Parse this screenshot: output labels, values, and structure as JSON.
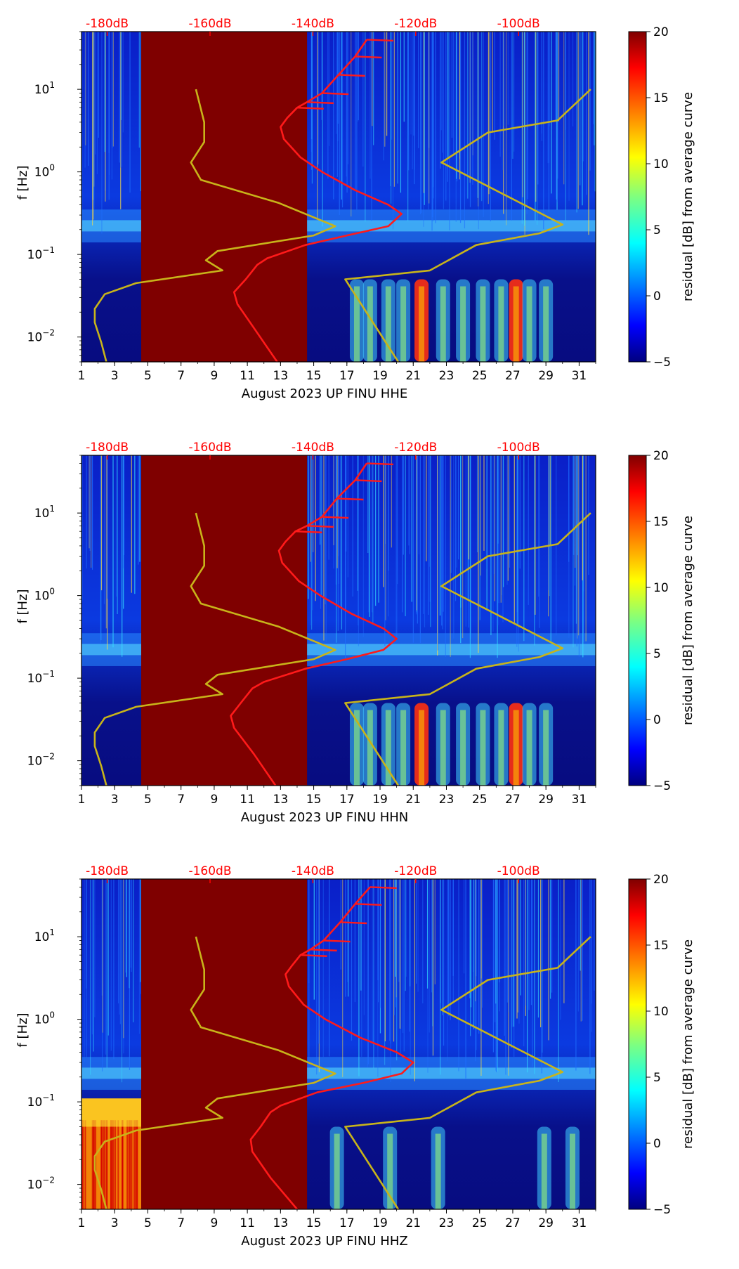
{
  "colors": {
    "power_curve": "#ff1a1a",
    "reference_curve": "#c8b41a",
    "db_label": "#ff0000",
    "axis": "#000000",
    "colormap": [
      "#00007f",
      "#0000ff",
      "#007fff",
      "#00ffff",
      "#7fff7f",
      "#ffff00",
      "#ff7f00",
      "#ff0000",
      "#7f0000"
    ]
  },
  "chart_data": [
    {
      "type": "heatmap",
      "channel": "HHE",
      "xlabel": "August 2023 UP FINU  HHE",
      "ylabel": "f [Hz]",
      "xlim": [
        1,
        32
      ],
      "xticks": [
        "1",
        "3",
        "5",
        "7",
        "9",
        "11",
        "13",
        "15",
        "17",
        "19",
        "21",
        "23",
        "25",
        "27",
        "29",
        "31"
      ],
      "ylim": [
        0.005,
        50
      ],
      "yscale": "log",
      "yticks": [
        {
          "value": 0.01,
          "base": "10",
          "exp": "−2"
        },
        {
          "value": 0.1,
          "base": "10",
          "exp": "−1"
        },
        {
          "value": 1,
          "base": "10",
          "exp": "0"
        },
        {
          "value": 10,
          "base": "10",
          "exp": "1"
        }
      ],
      "top_axis_labels": [
        "-180dB",
        "-160dB",
        "-140dB",
        "-120dB",
        "-100dB"
      ],
      "top_axis_range_dB": [
        -185,
        -85
      ],
      "saturated_days": [
        4.6,
        14.6
      ],
      "colorbar": {
        "label": "residual [dB] from average curve",
        "range": [
          -5,
          20
        ],
        "ticks": [
          "−5",
          "0",
          "5",
          "10",
          "15",
          "20"
        ]
      },
      "series": [
        {
          "name": "power curve",
          "points": [
            [
              12.8,
              0.005
            ],
            [
              11.5,
              0.012
            ],
            [
              10.4,
              0.025
            ],
            [
              10.2,
              0.035
            ],
            [
              10.9,
              0.05
            ],
            [
              11.6,
              0.075
            ],
            [
              12.2,
              0.09
            ],
            [
              14.5,
              0.13
            ],
            [
              17,
              0.17
            ],
            [
              19.5,
              0.22
            ],
            [
              20.3,
              0.31
            ],
            [
              19.5,
              0.4
            ],
            [
              17.5,
              0.6
            ],
            [
              15.5,
              1.0
            ],
            [
              14.2,
              1.5
            ],
            [
              13.2,
              2.5
            ],
            [
              13.0,
              3.5
            ],
            [
              13.4,
              4.5
            ],
            [
              14.0,
              6.0
            ],
            [
              14.6,
              7.0
            ],
            [
              15.5,
              9.0
            ],
            [
              16.5,
              15.0
            ],
            [
              17.5,
              25.0
            ],
            [
              18.2,
              40.0
            ]
          ]
        },
        {
          "name": "reference curve",
          "points": [
            [
              2.5,
              0.005
            ],
            [
              2.2,
              0.0085
            ],
            [
              1.8,
              0.015
            ],
            [
              1.8,
              0.022
            ],
            [
              2.4,
              0.033
            ],
            [
              4.3,
              0.045
            ],
            [
              9.5,
              0.064
            ],
            [
              8.5,
              0.085
            ],
            [
              9.2,
              0.11
            ],
            [
              15,
              0.17
            ],
            [
              16.3,
              0.22
            ],
            [
              12.9,
              0.42
            ],
            [
              8.2,
              0.8
            ],
            [
              7.6,
              1.3
            ],
            [
              8.4,
              2.3
            ],
            [
              8.4,
              4.0
            ],
            [
              7.9,
              10.0
            ]
          ]
        },
        {
          "name": "reference curve (high)",
          "points": [
            [
              20.1,
              0.005
            ],
            [
              16.9,
              0.05
            ],
            [
              22.0,
              0.064
            ],
            [
              24.8,
              0.13
            ],
            [
              28.6,
              0.18
            ],
            [
              30.0,
              0.23
            ],
            [
              22.7,
              1.3
            ],
            [
              25.5,
              3.0
            ],
            [
              29.7,
              4.2
            ],
            [
              31.7,
              10.0
            ]
          ]
        }
      ]
    },
    {
      "type": "heatmap",
      "channel": "HHN",
      "xlabel": "August 2023 UP FINU  HHN",
      "ylabel": "f [Hz]",
      "xlim": [
        1,
        32
      ],
      "xticks": [
        "1",
        "3",
        "5",
        "7",
        "9",
        "11",
        "13",
        "15",
        "17",
        "19",
        "21",
        "23",
        "25",
        "27",
        "29",
        "31"
      ],
      "ylim": [
        0.005,
        50
      ],
      "yscale": "log",
      "yticks": [
        {
          "value": 0.01,
          "base": "10",
          "exp": "−2"
        },
        {
          "value": 0.1,
          "base": "10",
          "exp": "−1"
        },
        {
          "value": 1,
          "base": "10",
          "exp": "0"
        },
        {
          "value": 10,
          "base": "10",
          "exp": "1"
        }
      ],
      "top_axis_labels": [
        "-180dB",
        "-160dB",
        "-140dB",
        "-120dB",
        "-100dB"
      ],
      "top_axis_range_dB": [
        -185,
        -85
      ],
      "saturated_days": [
        4.6,
        14.6
      ],
      "colorbar": {
        "label": "residual [dB] from average curve",
        "range": [
          -5,
          20
        ],
        "ticks": [
          "−5",
          "0",
          "5",
          "10",
          "15",
          "20"
        ]
      },
      "series": [
        {
          "name": "power curve",
          "points": [
            [
              12.7,
              0.005
            ],
            [
              11.4,
              0.012
            ],
            [
              10.2,
              0.025
            ],
            [
              10.0,
              0.035
            ],
            [
              10.6,
              0.05
            ],
            [
              11.3,
              0.075
            ],
            [
              12.0,
              0.09
            ],
            [
              14.5,
              0.13
            ],
            [
              17,
              0.17
            ],
            [
              19.2,
              0.22
            ],
            [
              20.0,
              0.3
            ],
            [
              19.2,
              0.4
            ],
            [
              17.3,
              0.6
            ],
            [
              15.4,
              1.0
            ],
            [
              14.1,
              1.5
            ],
            [
              13.1,
              2.5
            ],
            [
              12.9,
              3.5
            ],
            [
              13.3,
              4.5
            ],
            [
              13.9,
              6.0
            ],
            [
              14.6,
              7.0
            ],
            [
              15.5,
              9.0
            ],
            [
              16.4,
              15.0
            ],
            [
              17.5,
              25.0
            ],
            [
              18.2,
              40.0
            ]
          ]
        },
        {
          "name": "reference curve",
          "points": [
            [
              2.5,
              0.005
            ],
            [
              2.2,
              0.0085
            ],
            [
              1.8,
              0.015
            ],
            [
              1.8,
              0.022
            ],
            [
              2.4,
              0.033
            ],
            [
              4.3,
              0.045
            ],
            [
              9.5,
              0.064
            ],
            [
              8.5,
              0.085
            ],
            [
              9.2,
              0.11
            ],
            [
              15,
              0.17
            ],
            [
              16.3,
              0.22
            ],
            [
              12.9,
              0.42
            ],
            [
              8.2,
              0.8
            ],
            [
              7.6,
              1.3
            ],
            [
              8.4,
              2.3
            ],
            [
              8.4,
              4.0
            ],
            [
              7.9,
              10.0
            ]
          ]
        },
        {
          "name": "reference curve (high)",
          "points": [
            [
              20.1,
              0.005
            ],
            [
              16.9,
              0.05
            ],
            [
              22.0,
              0.064
            ],
            [
              24.8,
              0.13
            ],
            [
              28.6,
              0.18
            ],
            [
              30.0,
              0.23
            ],
            [
              22.7,
              1.3
            ],
            [
              25.5,
              3.0
            ],
            [
              29.7,
              4.2
            ],
            [
              31.7,
              10.0
            ]
          ]
        }
      ]
    },
    {
      "type": "heatmap",
      "channel": "HHZ",
      "xlabel": "August 2023 UP FINU  HHZ",
      "ylabel": "f [Hz]",
      "xlim": [
        1,
        32
      ],
      "xticks": [
        "1",
        "3",
        "5",
        "7",
        "9",
        "11",
        "13",
        "15",
        "17",
        "19",
        "21",
        "23",
        "25",
        "27",
        "29",
        "31"
      ],
      "ylim": [
        0.005,
        50
      ],
      "yscale": "log",
      "yticks": [
        {
          "value": 0.01,
          "base": "10",
          "exp": "−2"
        },
        {
          "value": 0.1,
          "base": "10",
          "exp": "−1"
        },
        {
          "value": 1,
          "base": "10",
          "exp": "0"
        },
        {
          "value": 10,
          "base": "10",
          "exp": "1"
        }
      ],
      "top_axis_labels": [
        "-180dB",
        "-160dB",
        "-140dB",
        "-120dB",
        "-100dB"
      ],
      "top_axis_range_dB": [
        -185,
        -85
      ],
      "saturated_days": [
        4.6,
        14.6
      ],
      "colorbar": {
        "label": "residual [dB] from average curve",
        "range": [
          -5,
          20
        ],
        "ticks": [
          "−5",
          "0",
          "5",
          "10",
          "15",
          "20"
        ]
      },
      "series": [
        {
          "name": "power curve",
          "points": [
            [
              14.0,
              0.005
            ],
            [
              12.4,
              0.012
            ],
            [
              11.3,
              0.025
            ],
            [
              11.2,
              0.035
            ],
            [
              11.8,
              0.05
            ],
            [
              12.4,
              0.075
            ],
            [
              13.0,
              0.09
            ],
            [
              15.2,
              0.13
            ],
            [
              18,
              0.17
            ],
            [
              20.3,
              0.22
            ],
            [
              21.0,
              0.3
            ],
            [
              20.0,
              0.4
            ],
            [
              17.8,
              0.6
            ],
            [
              15.7,
              1.0
            ],
            [
              14.4,
              1.5
            ],
            [
              13.5,
              2.5
            ],
            [
              13.3,
              3.5
            ],
            [
              13.7,
              4.5
            ],
            [
              14.2,
              6.0
            ],
            [
              14.8,
              7.0
            ],
            [
              15.6,
              9.0
            ],
            [
              16.6,
              15.0
            ],
            [
              17.5,
              25.0
            ],
            [
              18.4,
              40.0
            ]
          ]
        },
        {
          "name": "reference curve",
          "points": [
            [
              2.5,
              0.005
            ],
            [
              2.2,
              0.0085
            ],
            [
              1.8,
              0.015
            ],
            [
              1.8,
              0.022
            ],
            [
              2.4,
              0.033
            ],
            [
              4.3,
              0.045
            ],
            [
              9.5,
              0.064
            ],
            [
              8.5,
              0.085
            ],
            [
              9.2,
              0.11
            ],
            [
              15,
              0.17
            ],
            [
              16.3,
              0.22
            ],
            [
              12.9,
              0.42
            ],
            [
              8.2,
              0.8
            ],
            [
              7.6,
              1.3
            ],
            [
              8.4,
              2.3
            ],
            [
              8.4,
              4.0
            ],
            [
              7.9,
              10.0
            ]
          ]
        },
        {
          "name": "reference curve (high)",
          "points": [
            [
              20.1,
              0.005
            ],
            [
              16.9,
              0.05
            ],
            [
              22.0,
              0.064
            ],
            [
              24.8,
              0.13
            ],
            [
              28.6,
              0.18
            ],
            [
              30.0,
              0.23
            ],
            [
              22.7,
              1.3
            ],
            [
              25.5,
              3.0
            ],
            [
              29.7,
              4.2
            ],
            [
              31.7,
              10.0
            ]
          ]
        }
      ]
    }
  ]
}
